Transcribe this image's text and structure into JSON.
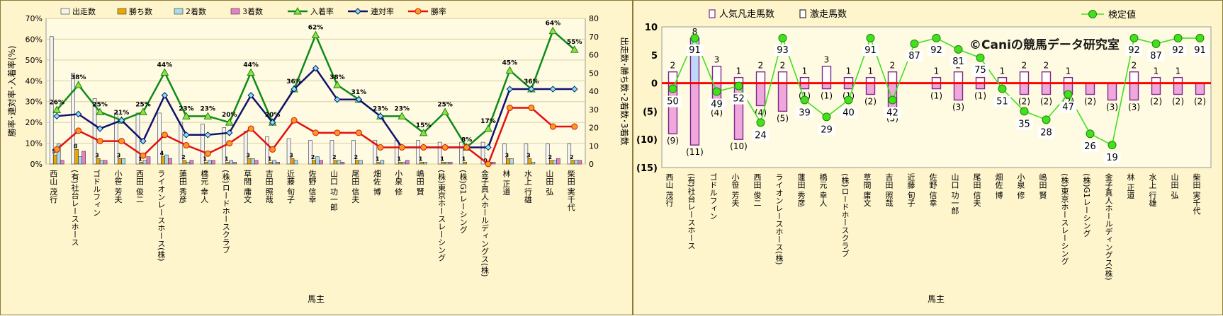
{
  "chart_data": [
    {
      "type": "bar",
      "xlabel": "馬主",
      "ylabel_left": "勝率･連対率･入着率(%)",
      "ylabel_right": "出走数･勝ち数･2着数･3着数",
      "ylim_left": [
        0,
        70
      ],
      "ylim_right": [
        0,
        80
      ],
      "yticks_left": [
        "0%",
        "10%",
        "20%",
        "30%",
        "40%",
        "50%",
        "60%",
        "70%"
      ],
      "yticks_right": [
        "0",
        "10",
        "20",
        "30",
        "40",
        "50",
        "60",
        "70",
        "80"
      ],
      "grid": true,
      "legend_position": "top",
      "categories": [
        "西山 茂行",
        "(有)社台レースホース",
        "ゴドルフィン",
        "小笹 芳夫",
        "西田 俊二",
        "ライオンレースホース(株)",
        "蓮田 秀彦",
        "橋元 幸人",
        "(株)ロードホースクラブ",
        "草間 庸文",
        "吉田 照哉",
        "近藤 旬子",
        "佐野 信幸",
        "山口 功一郎",
        "尾田 信夫",
        "畑佐 博",
        "小泉 修",
        "嶋田 賢",
        "(株)東京ホースレーシング",
        "(株)G1レーシング",
        "金子真人ホールディングス(株)",
        "林 正道",
        "水上 行雄",
        "山田 弘",
        "柴田 実千代"
      ],
      "bar_series": [
        {
          "name": "出走数",
          "color": "#f4f4f4",
          "values": [
            70,
            50,
            36,
            28,
            28,
            28,
            23,
            22,
            20,
            18,
            15,
            14,
            13,
            13,
            13,
            13,
            13,
            13,
            12,
            12,
            12,
            11,
            11,
            11,
            11
          ]
        },
        {
          "name": "勝ち数",
          "color": "#e8a800",
          "values": [
            5,
            8,
            3,
            3,
            1,
            4,
            2,
            1,
            1,
            3,
            1,
            3,
            2,
            2,
            2,
            1,
            1,
            1,
            1,
            1,
            0,
            3,
            3,
            2,
            2
          ]
        },
        {
          "name": "2着数",
          "color": "#a8dcec",
          "values": [
            11,
            4,
            2,
            3,
            2,
            5,
            1,
            2,
            2,
            3,
            2,
            2,
            4,
            2,
            2,
            2,
            1,
            1,
            1,
            0,
            1,
            3,
            1,
            2,
            2
          ]
        },
        {
          "name": "3着数",
          "color": "#e87ec8",
          "values": [
            2,
            7,
            2,
            0,
            4,
            3,
            2,
            2,
            1,
            2,
            1,
            0,
            2,
            1,
            0,
            0,
            2,
            0,
            1,
            0,
            1,
            0,
            0,
            3,
            2
          ]
        }
      ],
      "line_series": [
        {
          "name": "入着率",
          "color": "#0e8a1a",
          "marker": "triangle",
          "values": [
            26,
            38,
            25,
            21,
            25,
            44,
            23,
            23,
            20,
            44,
            20,
            36,
            62,
            38,
            31,
            23,
            23,
            15,
            25,
            8,
            17,
            45,
            36,
            64,
            55
          ]
        },
        {
          "name": "連対率",
          "color": "#101070",
          "marker": "diamond",
          "values": [
            23,
            24,
            17,
            21,
            11,
            33,
            14,
            14,
            15,
            33,
            20,
            36,
            46,
            31,
            31,
            23,
            8,
            8,
            8,
            8,
            8,
            36,
            36,
            36,
            36
          ]
        },
        {
          "name": "勝率",
          "color": "#e21010",
          "marker": "circle",
          "values": [
            7,
            16,
            11,
            11,
            4,
            14,
            9,
            5,
            10,
            17,
            7,
            21,
            15,
            15,
            15,
            8,
            8,
            8,
            8,
            8,
            0,
            27,
            27,
            18,
            18
          ]
        }
      ],
      "line_labels": {
        "入着率": [
          "26%",
          "38%",
          "25%",
          "21%",
          "25%",
          "44%",
          "23%",
          "23%",
          "20%",
          "44%",
          "20%",
          "36%",
          "62%",
          "38%",
          "31%",
          "23%",
          "23%",
          "15%",
          "25%",
          "8%",
          "17%",
          "45%",
          "36%",
          "64%",
          "55%"
        ]
      },
      "bar_labels": {
        "勝ち数": [
          "5",
          "8",
          "3",
          "3",
          "1",
          "4",
          "2",
          "1",
          "1",
          "3",
          "1",
          "3",
          "2",
          "2",
          "2",
          "1",
          "1",
          "1",
          "1",
          "1",
          "0",
          "3",
          "3",
          "2",
          "2"
        ]
      }
    },
    {
      "type": "bar",
      "xlabel": "馬主",
      "ylim": [
        -15,
        10
      ],
      "yticks": [
        "(15)",
        "(10)",
        "(5)",
        "0",
        "5",
        "10"
      ],
      "legend_position": "top",
      "watermark": "©Caniの競馬データ研究室",
      "categories": [
        "西山 茂行",
        "(有)社台レースホース",
        "ゴドルフィン",
        "小笹 芳夫",
        "西田 俊二",
        "ライオンレースホース(株)",
        "蓮田 秀彦",
        "橋元 幸人",
        "(株)ロードホースクラブ",
        "草間 庸文",
        "吉田 照哉",
        "近藤 旬子",
        "佐野 信幸",
        "山口 功一郎",
        "尾田 信夫",
        "畑佐 博",
        "小泉 修",
        "嶋田 賢",
        "(株)東京ホースレーシング",
        "(株)G1レーシング",
        "金子真人ホールディングス(株)",
        "林 正道",
        "水上 行雄",
        "山田 弘",
        "柴田 実千代"
      ],
      "bar_series": [
        {
          "name": "人気凡走馬数",
          "color": "#ffffff",
          "values": [
            2,
            8,
            3,
            1,
            2,
            2,
            1,
            3,
            1,
            1,
            2,
            0,
            1,
            2,
            1,
            1,
            2,
            2,
            1,
            0,
            0,
            2,
            1,
            1,
            0
          ]
        },
        {
          "name": "激走馬数",
          "color": "#f0a8dc",
          "values": [
            -9,
            -11,
            -4,
            -10,
            -4,
            -5,
            -1,
            -1,
            -1,
            -2,
            -5,
            0,
            -1,
            -3,
            -1,
            0,
            -2,
            -2,
            -2,
            -2,
            -3,
            -3,
            -2,
            -2,
            -2
          ]
        }
      ],
      "positive_labels": [
        "2",
        "8",
        "3",
        "1",
        "2",
        "2",
        "1",
        "3",
        "1",
        "1",
        "2",
        "",
        "1",
        "2",
        "1",
        "1",
        "2",
        "2",
        "1",
        "",
        "",
        "2",
        "1",
        "1",
        ""
      ],
      "negative_labels": [
        "(9)",
        "(11)",
        "(4)",
        "(10)",
        "(4)",
        "(5)",
        "(1)",
        "(1)",
        "(1)",
        "(2)",
        "(5)",
        "",
        "(1)",
        "(3)",
        "(1)",
        "",
        "(2)",
        "(2)",
        "(2)",
        "(2)",
        "(3)",
        "(3)",
        "(2)",
        "(2)",
        "(2)"
      ],
      "line_series": [
        {
          "name": "検定値",
          "color": "#40e020",
          "marker": "circle",
          "values": [
            -1,
            8,
            -1.5,
            -0.5,
            -7,
            8,
            -3,
            -6,
            -3,
            8,
            -3,
            7,
            8,
            6,
            4.5,
            -1,
            -5,
            -6.5,
            -2,
            -9,
            -11,
            8,
            7,
            8,
            8
          ],
          "labels": [
            "50",
            "91",
            "49",
            "52",
            "24",
            "93",
            "39",
            "29",
            "40",
            "91",
            "42",
            "87",
            "92",
            "81",
            "75",
            "51",
            "35",
            "28",
            "47",
            "26",
            "19",
            "92",
            "87",
            "92",
            "91"
          ]
        }
      ]
    }
  ]
}
